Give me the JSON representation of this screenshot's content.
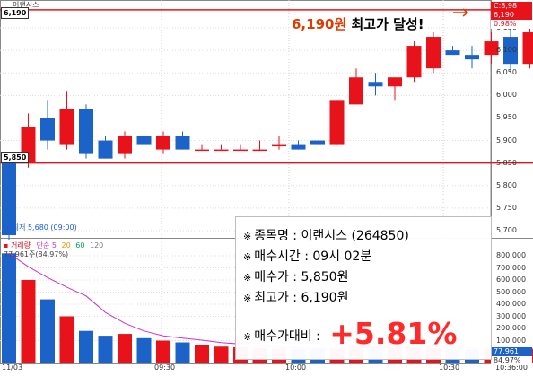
{
  "stock_title": "이랜시스",
  "price_levels": {
    "high_tag": "6,190",
    "buy_tag": "5,850"
  },
  "right_tags": {
    "top": "C:8,98",
    "current": "6,190",
    "pct": "0.98%"
  },
  "low_label": "최저 5,680 (09:00)",
  "volume_legend": {
    "title": "거래량",
    "ma_label": "단순",
    "ma1": "5",
    "ma2": "20",
    "ma3": "60",
    "ma4": "120"
  },
  "volume_sub": "77,961주(84.97%)",
  "vol_right_tags": {
    "value": "77,961",
    "pct": "84.97%"
  },
  "colors": {
    "up": "#e8121b",
    "down": "#1c63c9",
    "level_line": "#e8121b",
    "highlight": "#f4d43a"
  },
  "headline": {
    "price": "6,190원",
    "rest": " 최고가 달성!"
  },
  "info": {
    "marker": "※",
    "name_label": "종목명 : ",
    "name_value": "이랜시스 (264850)",
    "time_label": "매수시간 : ",
    "time_value": "09시 02분",
    "buy_label": "매수가 : ",
    "buy_value": "5,850원",
    "high_label": "최고가 : ",
    "high_value": "6,190원",
    "diff_label": "매수가대비 : ",
    "diff_value": "+5.81%"
  },
  "y_ticks": [
    "6,150",
    "6,100",
    "6,050",
    "6,000",
    "5,950",
    "5,900",
    "5,850",
    "5,800",
    "5,750",
    "5,700"
  ],
  "vol_ticks": [
    "800,000",
    "700,000",
    "600,000",
    "500,000",
    "400,000",
    "300,000",
    "200,000",
    "100,000"
  ],
  "x_ticks": [
    "11/03",
    "09:30",
    "10:00",
    "10:30",
    "10:36:00"
  ],
  "chart_data": {
    "type": "candlestick",
    "interval": "1 minute",
    "ylim": [
      5660,
      6200
    ],
    "candles": [
      {
        "o": 5850,
        "h": 5850,
        "l": 5680,
        "c": 5690
      },
      {
        "o": 5850,
        "h": 5960,
        "l": 5840,
        "c": 5930
      },
      {
        "o": 5950,
        "h": 5990,
        "l": 5880,
        "c": 5900
      },
      {
        "o": 5890,
        "h": 6010,
        "l": 5880,
        "c": 5970
      },
      {
        "o": 5970,
        "h": 5980,
        "l": 5860,
        "c": 5870
      },
      {
        "o": 5900,
        "h": 5910,
        "l": 5860,
        "c": 5860
      },
      {
        "o": 5870,
        "h": 5920,
        "l": 5860,
        "c": 5910
      },
      {
        "o": 5910,
        "h": 5920,
        "l": 5880,
        "c": 5890
      },
      {
        "o": 5880,
        "h": 5920,
        "l": 5870,
        "c": 5910
      },
      {
        "o": 5910,
        "h": 5920,
        "l": 5880,
        "c": 5880
      },
      {
        "o": 5880,
        "h": 5890,
        "l": 5880,
        "c": 5880
      },
      {
        "o": 5880,
        "h": 5890,
        "l": 5880,
        "c": 5880
      },
      {
        "o": 5880,
        "h": 5890,
        "l": 5880,
        "c": 5880
      },
      {
        "o": 5880,
        "h": 5900,
        "l": 5880,
        "c": 5880
      },
      {
        "o": 5890,
        "h": 5910,
        "l": 5880,
        "c": 5890
      },
      {
        "o": 5890,
        "h": 5900,
        "l": 5880,
        "c": 5880
      },
      {
        "o": 5900,
        "h": 5900,
        "l": 5890,
        "c": 5890
      },
      {
        "o": 5890,
        "h": 5990,
        "l": 5890,
        "c": 5990
      },
      {
        "o": 5980,
        "h": 6060,
        "l": 5980,
        "c": 6040
      },
      {
        "o": 6030,
        "h": 6050,
        "l": 6000,
        "c": 6020
      },
      {
        "o": 6020,
        "h": 6040,
        "l": 5990,
        "c": 6040
      },
      {
        "o": 6040,
        "h": 6120,
        "l": 6030,
        "c": 6110
      },
      {
        "o": 6060,
        "h": 6140,
        "l": 6050,
        "c": 6130
      },
      {
        "o": 6100,
        "h": 6110,
        "l": 6090,
        "c": 6090
      },
      {
        "o": 6090,
        "h": 6110,
        "l": 6060,
        "c": 6080
      },
      {
        "o": 6090,
        "h": 6140,
        "l": 6070,
        "c": 6120
      },
      {
        "o": 6130,
        "h": 6150,
        "l": 6050,
        "c": 6070
      },
      {
        "o": 6070,
        "h": 6150,
        "l": 6060,
        "c": 6140
      },
      {
        "o": 6140,
        "h": 6190,
        "l": 6100,
        "c": 6130
      },
      {
        "o": 6130,
        "h": 6170,
        "l": 6110,
        "c": 6120
      },
      {
        "o": 6120,
        "h": 6190,
        "l": 6110,
        "c": 6190
      }
    ],
    "levels": [
      6190,
      5850
    ],
    "volume_ylim": [
      0,
      850000
    ],
    "volume": [
      820000,
      600000,
      440000,
      300000,
      180000,
      140000,
      155000,
      120000,
      100000,
      85000,
      60000,
      50000,
      45000,
      40000,
      35000,
      30000,
      30000,
      40000,
      55000,
      60000,
      50000,
      45000,
      40000,
      35000,
      30000,
      25000,
      30000,
      28000,
      25000,
      25000,
      77961
    ],
    "ma5": [
      820000,
      710000,
      620000,
      540000,
      468000,
      332000,
      243000,
      179000,
      139000,
      120000,
      104000,
      83000,
      72000,
      56000,
      46000,
      40000,
      36000,
      35000,
      38000,
      43000,
      47000,
      50000,
      50000,
      47000,
      40000,
      35000,
      33000,
      31000,
      29000,
      27000,
      37000
    ],
    "ma20": [
      null,
      null,
      null,
      null,
      null,
      null,
      null,
      null,
      null,
      null,
      null,
      null,
      null,
      null,
      null,
      null,
      null,
      null,
      null,
      142000,
      103000,
      75000,
      55000,
      42000,
      38000,
      36000,
      35000,
      34000,
      33000,
      33000,
      35000
    ]
  }
}
